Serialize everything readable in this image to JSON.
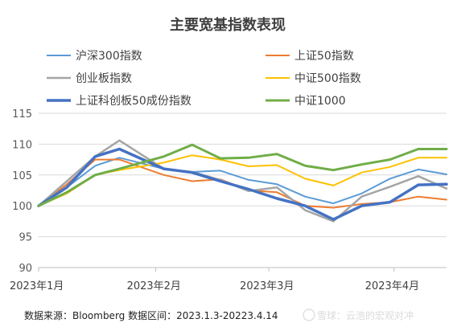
{
  "chart_data": {
    "type": "line",
    "title": "主要宽基指数表现",
    "xlabel": "",
    "ylabel": "",
    "ylim": [
      90,
      115
    ],
    "y_ticks": [
      90,
      95,
      100,
      105,
      110,
      115
    ],
    "x_tick_labels": [
      "2023年1月",
      "2023年2月",
      "2023年3月",
      "2023年4月"
    ],
    "x_tick_dates": [
      "2023-01-01",
      "2023-02-01",
      "2023-03-01",
      "2023-04-01"
    ],
    "x_range": [
      "2023-01-03",
      "2023-04-14"
    ],
    "grid": "horizontal",
    "legend_position": "top",
    "dates": [
      "2023-01-03",
      "2023-01-10",
      "2023-01-17",
      "2023-01-23",
      "2023-02-03",
      "2023-02-10",
      "2023-02-17",
      "2023-02-24",
      "2023-03-03",
      "2023-03-10",
      "2023-03-17",
      "2023-03-24",
      "2023-03-31",
      "2023-04-07",
      "2023-04-14"
    ],
    "series": [
      {
        "name": "沪深300指数",
        "color": "#5B9BD5",
        "width": 2,
        "values": [
          100,
          103.0,
          106.5,
          107.8,
          106.0,
          105.5,
          105.7,
          104.2,
          103.5,
          101.5,
          100.4,
          102.0,
          104.4,
          105.9,
          105.1
        ]
      },
      {
        "name": "上证50指数",
        "color": "#ED7D31",
        "width": 2,
        "values": [
          100,
          103.5,
          107.5,
          107.5,
          105.0,
          104.0,
          104.3,
          102.5,
          102.2,
          100.0,
          99.7,
          100.3,
          100.6,
          101.5,
          101.0
        ]
      },
      {
        "name": "创业板指数",
        "color": "#A5A5A5",
        "width": 2.5,
        "values": [
          100,
          104.0,
          108.0,
          110.6,
          106.0,
          105.5,
          104.2,
          102.4,
          103.0,
          99.3,
          97.5,
          101.5,
          103.1,
          104.8,
          102.8
        ]
      },
      {
        "name": "中证500指数",
        "color": "#FFC000",
        "width": 2,
        "values": [
          100,
          102.0,
          105.0,
          105.8,
          107.0,
          108.2,
          107.5,
          106.4,
          106.6,
          104.4,
          103.3,
          105.4,
          106.3,
          107.8,
          107.8
        ]
      },
      {
        "name": "上证科创板50成份指数",
        "color": "#4472C4",
        "width": 3.5,
        "values": [
          100,
          103.0,
          108.0,
          109.2,
          106.0,
          105.4,
          104.0,
          102.7,
          101.2,
          100.0,
          97.8,
          100.0,
          100.6,
          103.4,
          103.5
        ]
      },
      {
        "name": "中证1000",
        "color": "#70AD47",
        "width": 3,
        "values": [
          100,
          102.2,
          105.0,
          106.0,
          108.0,
          109.9,
          107.7,
          107.8,
          108.4,
          106.5,
          105.8,
          106.7,
          107.5,
          109.2,
          109.2
        ]
      }
    ],
    "footnote": "数据来源：Bloomberg 数据区间：2023.1.3-20223.4.14",
    "watermark": "雪球：云浩的宏观对冲"
  }
}
